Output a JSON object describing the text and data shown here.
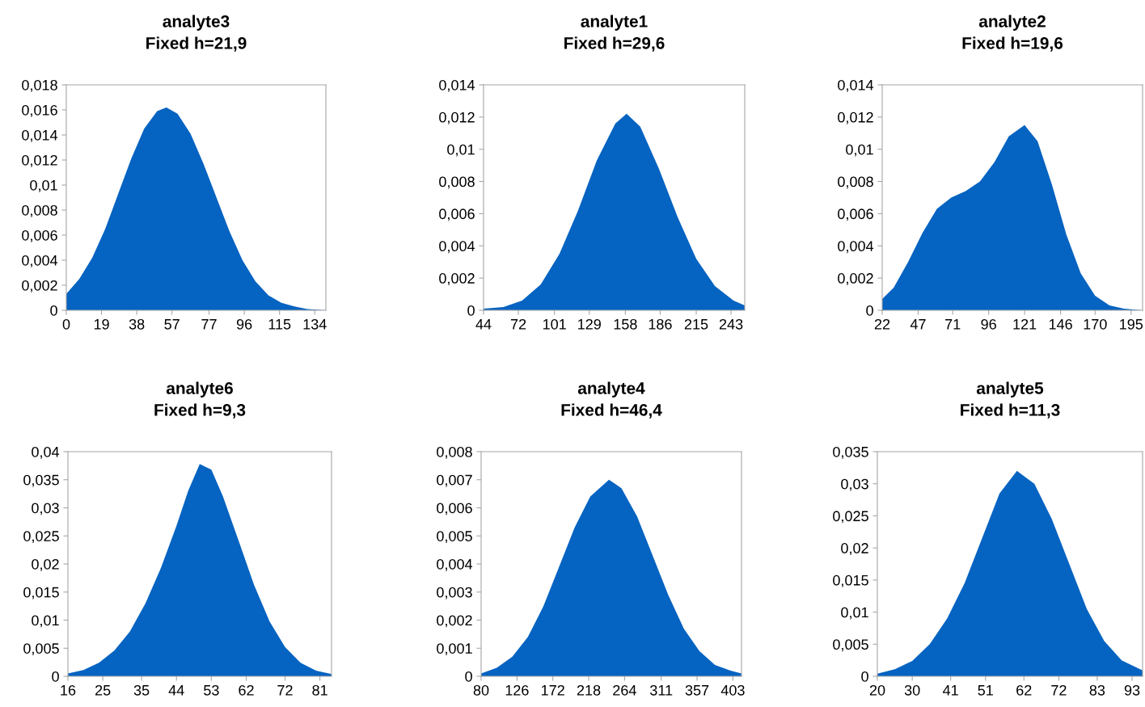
{
  "chart_data": [
    {
      "type": "area",
      "title": "analyte3",
      "subtitle": "Fixed h=21,9",
      "x": [
        0,
        7,
        14,
        21,
        28,
        35,
        42,
        49,
        54,
        60,
        67,
        74,
        81,
        88,
        95,
        102,
        109,
        116,
        123,
        130,
        140
      ],
      "series": [
        {
          "color": "#0563c1",
          "values": [
            0.0013,
            0.0025,
            0.0042,
            0.0065,
            0.0093,
            0.0121,
            0.0145,
            0.0159,
            0.0162,
            0.0157,
            0.0141,
            0.0117,
            0.009,
            0.0063,
            0.004,
            0.0023,
            0.0012,
            0.0006,
            0.0003,
            0.0001,
            0.0
          ]
        }
      ],
      "xlim": [
        0,
        140
      ],
      "xticks": [
        0,
        19,
        38,
        57,
        77,
        96,
        115,
        134
      ],
      "ylim": [
        0,
        0.018
      ],
      "yticks": [
        0,
        {
          "value": 0.002,
          "label": "0,002"
        },
        {
          "value": 0.004,
          "label": "0,004"
        },
        {
          "value": 0.006,
          "label": "0,006"
        },
        {
          "value": 0.008,
          "label": "0,008"
        },
        {
          "value": 0.01,
          "label": "0,01"
        },
        {
          "value": 0.012,
          "label": "0,012"
        },
        {
          "value": 0.014,
          "label": "0,014"
        },
        {
          "value": 0.016,
          "label": "0,016"
        },
        {
          "value": 0.018,
          "label": "0,018"
        }
      ],
      "grid": false,
      "legend": false
    },
    {
      "type": "area",
      "title": "analyte1",
      "subtitle": "Fixed h=29,6",
      "x": [
        44,
        60,
        75,
        90,
        105,
        120,
        135,
        150,
        159,
        170,
        185,
        200,
        215,
        230,
        245,
        254
      ],
      "series": [
        {
          "color": "#0563c1",
          "values": [
            0.0001,
            0.0002,
            0.0006,
            0.0016,
            0.0035,
            0.0062,
            0.0093,
            0.0116,
            0.0122,
            0.0114,
            0.0088,
            0.0058,
            0.0032,
            0.0015,
            0.0006,
            0.0003
          ]
        }
      ],
      "xlim": [
        44,
        254
      ],
      "xticks": [
        44,
        72,
        101,
        129,
        158,
        186,
        215,
        243
      ],
      "ylim": [
        0,
        0.014
      ],
      "yticks": [
        0,
        {
          "value": 0.002,
          "label": "0,002"
        },
        {
          "value": 0.004,
          "label": "0,004"
        },
        {
          "value": 0.006,
          "label": "0,006"
        },
        {
          "value": 0.008,
          "label": "0,008"
        },
        {
          "value": 0.01,
          "label": "0,01"
        },
        {
          "value": 0.012,
          "label": "0,012"
        },
        {
          "value": 0.014,
          "label": "0,014"
        }
      ],
      "grid": false,
      "legend": false
    },
    {
      "type": "area",
      "title": "analyte2",
      "subtitle": "Fixed h=19,6",
      "x": [
        22,
        30,
        40,
        50,
        60,
        70,
        80,
        90,
        100,
        110,
        121,
        130,
        140,
        150,
        160,
        170,
        180,
        190,
        203
      ],
      "series": [
        {
          "color": "#0563c1",
          "values": [
            0.0007,
            0.0014,
            0.003,
            0.0048,
            0.0063,
            0.007,
            0.0074,
            0.008,
            0.0092,
            0.0108,
            0.0115,
            0.0105,
            0.0078,
            0.0047,
            0.0023,
            0.0009,
            0.0003,
            0.0001,
            0.0
          ]
        }
      ],
      "xlim": [
        22,
        203
      ],
      "xticks": [
        22,
        47,
        71,
        96,
        121,
        146,
        170,
        195
      ],
      "ylim": [
        0,
        0.014
      ],
      "yticks": [
        0,
        {
          "value": 0.002,
          "label": "0,002"
        },
        {
          "value": 0.004,
          "label": "0,004"
        },
        {
          "value": 0.006,
          "label": "0,006"
        },
        {
          "value": 0.008,
          "label": "0,008"
        },
        {
          "value": 0.01,
          "label": "0,01"
        },
        {
          "value": 0.012,
          "label": "0,012"
        },
        {
          "value": 0.014,
          "label": "0,014"
        }
      ],
      "grid": false,
      "legend": false
    },
    {
      "type": "area",
      "title": "analyte6",
      "subtitle": "Fixed h=9,3",
      "x": [
        16,
        20,
        24,
        28,
        32,
        36,
        40,
        44,
        47,
        50,
        53,
        56,
        60,
        64,
        68,
        72,
        76,
        80,
        84
      ],
      "series": [
        {
          "color": "#0563c1",
          "values": [
            0.0005,
            0.0011,
            0.0024,
            0.0046,
            0.008,
            0.013,
            0.0193,
            0.0268,
            0.033,
            0.0378,
            0.0368,
            0.032,
            0.0242,
            0.0163,
            0.0098,
            0.0052,
            0.0024,
            0.001,
            0.0004
          ]
        }
      ],
      "xlim": [
        16,
        84
      ],
      "xticks": [
        16,
        25,
        35,
        44,
        53,
        62,
        72,
        81
      ],
      "ylim": [
        0,
        0.04
      ],
      "yticks": [
        0,
        {
          "value": 0.005,
          "label": "0,005"
        },
        {
          "value": 0.01,
          "label": "0,01"
        },
        {
          "value": 0.015,
          "label": "0,015"
        },
        {
          "value": 0.02,
          "label": "0,02"
        },
        {
          "value": 0.025,
          "label": "0,025"
        },
        {
          "value": 0.03,
          "label": "0,03"
        },
        {
          "value": 0.035,
          "label": "0,035"
        },
        {
          "value": 0.04,
          "label": "0,04"
        }
      ],
      "grid": false,
      "legend": false
    },
    {
      "type": "area",
      "title": "analyte4",
      "subtitle": "Fixed h=46,4",
      "x": [
        80,
        100,
        120,
        140,
        160,
        180,
        200,
        220,
        244,
        260,
        280,
        300,
        320,
        340,
        360,
        380,
        400,
        414
      ],
      "series": [
        {
          "color": "#0563c1",
          "values": [
            0.0001,
            0.0003,
            0.0007,
            0.0014,
            0.0025,
            0.0039,
            0.0053,
            0.0064,
            0.007,
            0.0067,
            0.0057,
            0.0043,
            0.0029,
            0.0017,
            0.0009,
            0.0004,
            0.0002,
            0.0001
          ]
        }
      ],
      "xlim": [
        80,
        414
      ],
      "xticks": [
        80,
        126,
        172,
        218,
        264,
        311,
        357,
        403
      ],
      "ylim": [
        0,
        0.008
      ],
      "yticks": [
        0,
        {
          "value": 0.001,
          "label": "0,001"
        },
        {
          "value": 0.002,
          "label": "0,002"
        },
        {
          "value": 0.003,
          "label": "0,003"
        },
        {
          "value": 0.004,
          "label": "0,004"
        },
        {
          "value": 0.005,
          "label": "0,005"
        },
        {
          "value": 0.006,
          "label": "0,006"
        },
        {
          "value": 0.007,
          "label": "0,007"
        },
        {
          "value": 0.008,
          "label": "0,008"
        }
      ],
      "grid": false,
      "legend": false
    },
    {
      "type": "area",
      "title": "analyte5",
      "subtitle": "Fixed h=11,3",
      "x": [
        20,
        25,
        30,
        35,
        40,
        45,
        50,
        55,
        60,
        65,
        70,
        75,
        80,
        85,
        90,
        96
      ],
      "series": [
        {
          "color": "#0563c1",
          "values": [
            0.0004,
            0.0011,
            0.0024,
            0.005,
            0.009,
            0.0145,
            0.0215,
            0.0285,
            0.032,
            0.03,
            0.0245,
            0.0175,
            0.0105,
            0.0055,
            0.0025,
            0.0009
          ]
        }
      ],
      "xlim": [
        20,
        96
      ],
      "xticks": [
        20,
        30,
        41,
        51,
        62,
        72,
        83,
        93
      ],
      "ylim": [
        0,
        0.035
      ],
      "yticks": [
        0,
        {
          "value": 0.005,
          "label": "0,005"
        },
        {
          "value": 0.01,
          "label": "0,01"
        },
        {
          "value": 0.015,
          "label": "0,015"
        },
        {
          "value": 0.02,
          "label": "0,02"
        },
        {
          "value": 0.025,
          "label": "0,025"
        },
        {
          "value": 0.03,
          "label": "0,03"
        },
        {
          "value": 0.035,
          "label": "0,035"
        }
      ],
      "grid": false,
      "legend": false
    }
  ]
}
